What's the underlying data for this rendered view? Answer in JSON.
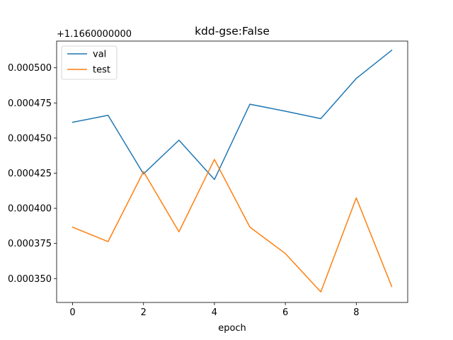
{
  "chart_data": {
    "type": "line",
    "title": "kdd-gse:False",
    "xlabel": "epoch",
    "ylabel": "",
    "y_offset_label": "+1.1660000000",
    "x": [
      0,
      1,
      2,
      3,
      4,
      5,
      6,
      7,
      8,
      9
    ],
    "xlim": [
      -0.45,
      9.45
    ],
    "ylim": [
      0.000333,
      0.000519
    ],
    "x_ticks": [
      0,
      2,
      4,
      6,
      8
    ],
    "x_tick_labels": [
      "0",
      "2",
      "4",
      "6",
      "8"
    ],
    "y_ticks": [
      0.00035,
      0.000375,
      0.0004,
      0.000425,
      0.00045,
      0.000475,
      0.0005
    ],
    "y_tick_labels": [
      "0.000350",
      "0.000375",
      "0.000400",
      "0.000425",
      "0.000450",
      "0.000475",
      "0.000500"
    ],
    "grid": false,
    "legend_position": "top-left",
    "series": [
      {
        "name": "val",
        "color": "#1f77b4",
        "values": [
          0.0004612,
          0.0004662,
          0.0004245,
          0.0004485,
          0.0004205,
          0.0004741,
          0.0004691,
          0.0004638,
          0.0004924,
          0.0005125
        ]
      },
      {
        "name": "test",
        "color": "#ff7f0e",
        "values": [
          0.0003866,
          0.0003763,
          0.0004261,
          0.0003833,
          0.0004348,
          0.0003866,
          0.0003678,
          0.0003405,
          0.0004074,
          0.0003443
        ]
      }
    ]
  }
}
